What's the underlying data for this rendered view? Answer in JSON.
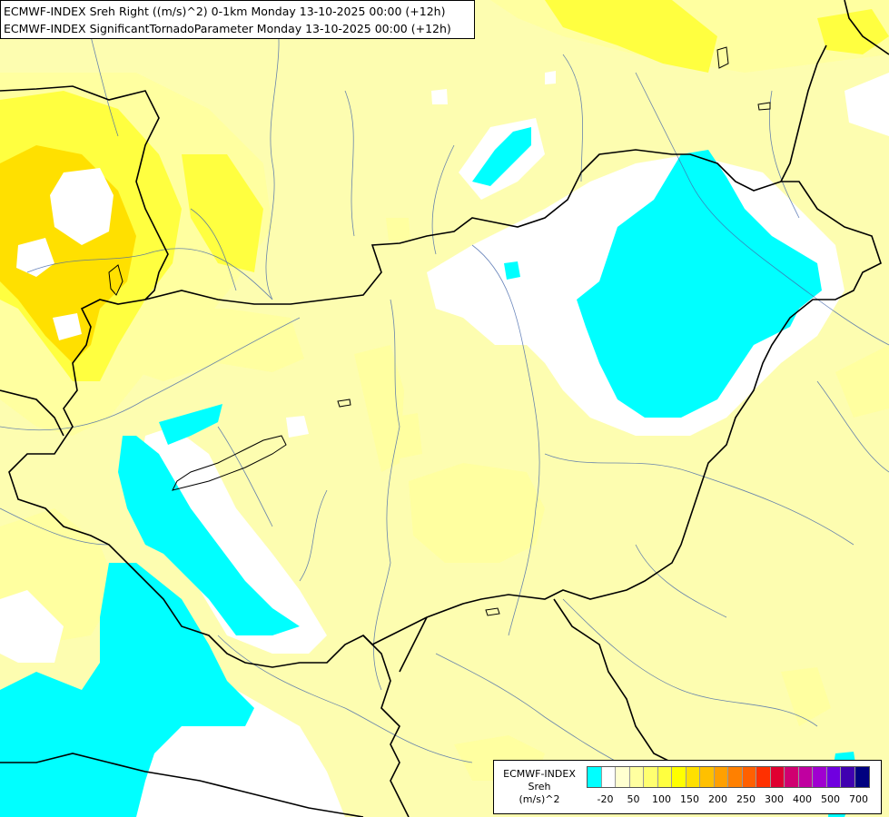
{
  "title": {
    "line1": "ECMWF-INDEX Sreh Right ((m/s)^2) 0-1km Monday 13-10-2025 00:00 (+12h)",
    "line2": "ECMWF-INDEX SignificantTornadoParameter Monday 13-10-2025 00:00 (+12h)"
  },
  "legend": {
    "line1": "ECMWF-INDEX",
    "line2": "Sreh",
    "line3": "(m/s)^2",
    "colors": [
      "#00ffff",
      "#ffffff",
      "#ffffd0",
      "#ffffa0",
      "#ffff70",
      "#ffff40",
      "#ffff00",
      "#ffe000",
      "#ffc000",
      "#ffa000",
      "#ff8000",
      "#ff6000",
      "#ff3000",
      "#e00030",
      "#d00070",
      "#c000a0",
      "#a000d0",
      "#7000e0",
      "#4000b0",
      "#000080"
    ],
    "ticks": [
      "-20",
      "50",
      "100",
      "150",
      "200",
      "250",
      "300",
      "400",
      "500",
      "700"
    ]
  },
  "colors": {
    "background": "#fdfdb0",
    "cyan": "#00ffff",
    "white": "#ffffff",
    "light_yellow": "#ffffa0",
    "yellow": "#ffff40",
    "gold": "#ffe000",
    "border_line": "#000000",
    "river_line": "#4466aa"
  }
}
